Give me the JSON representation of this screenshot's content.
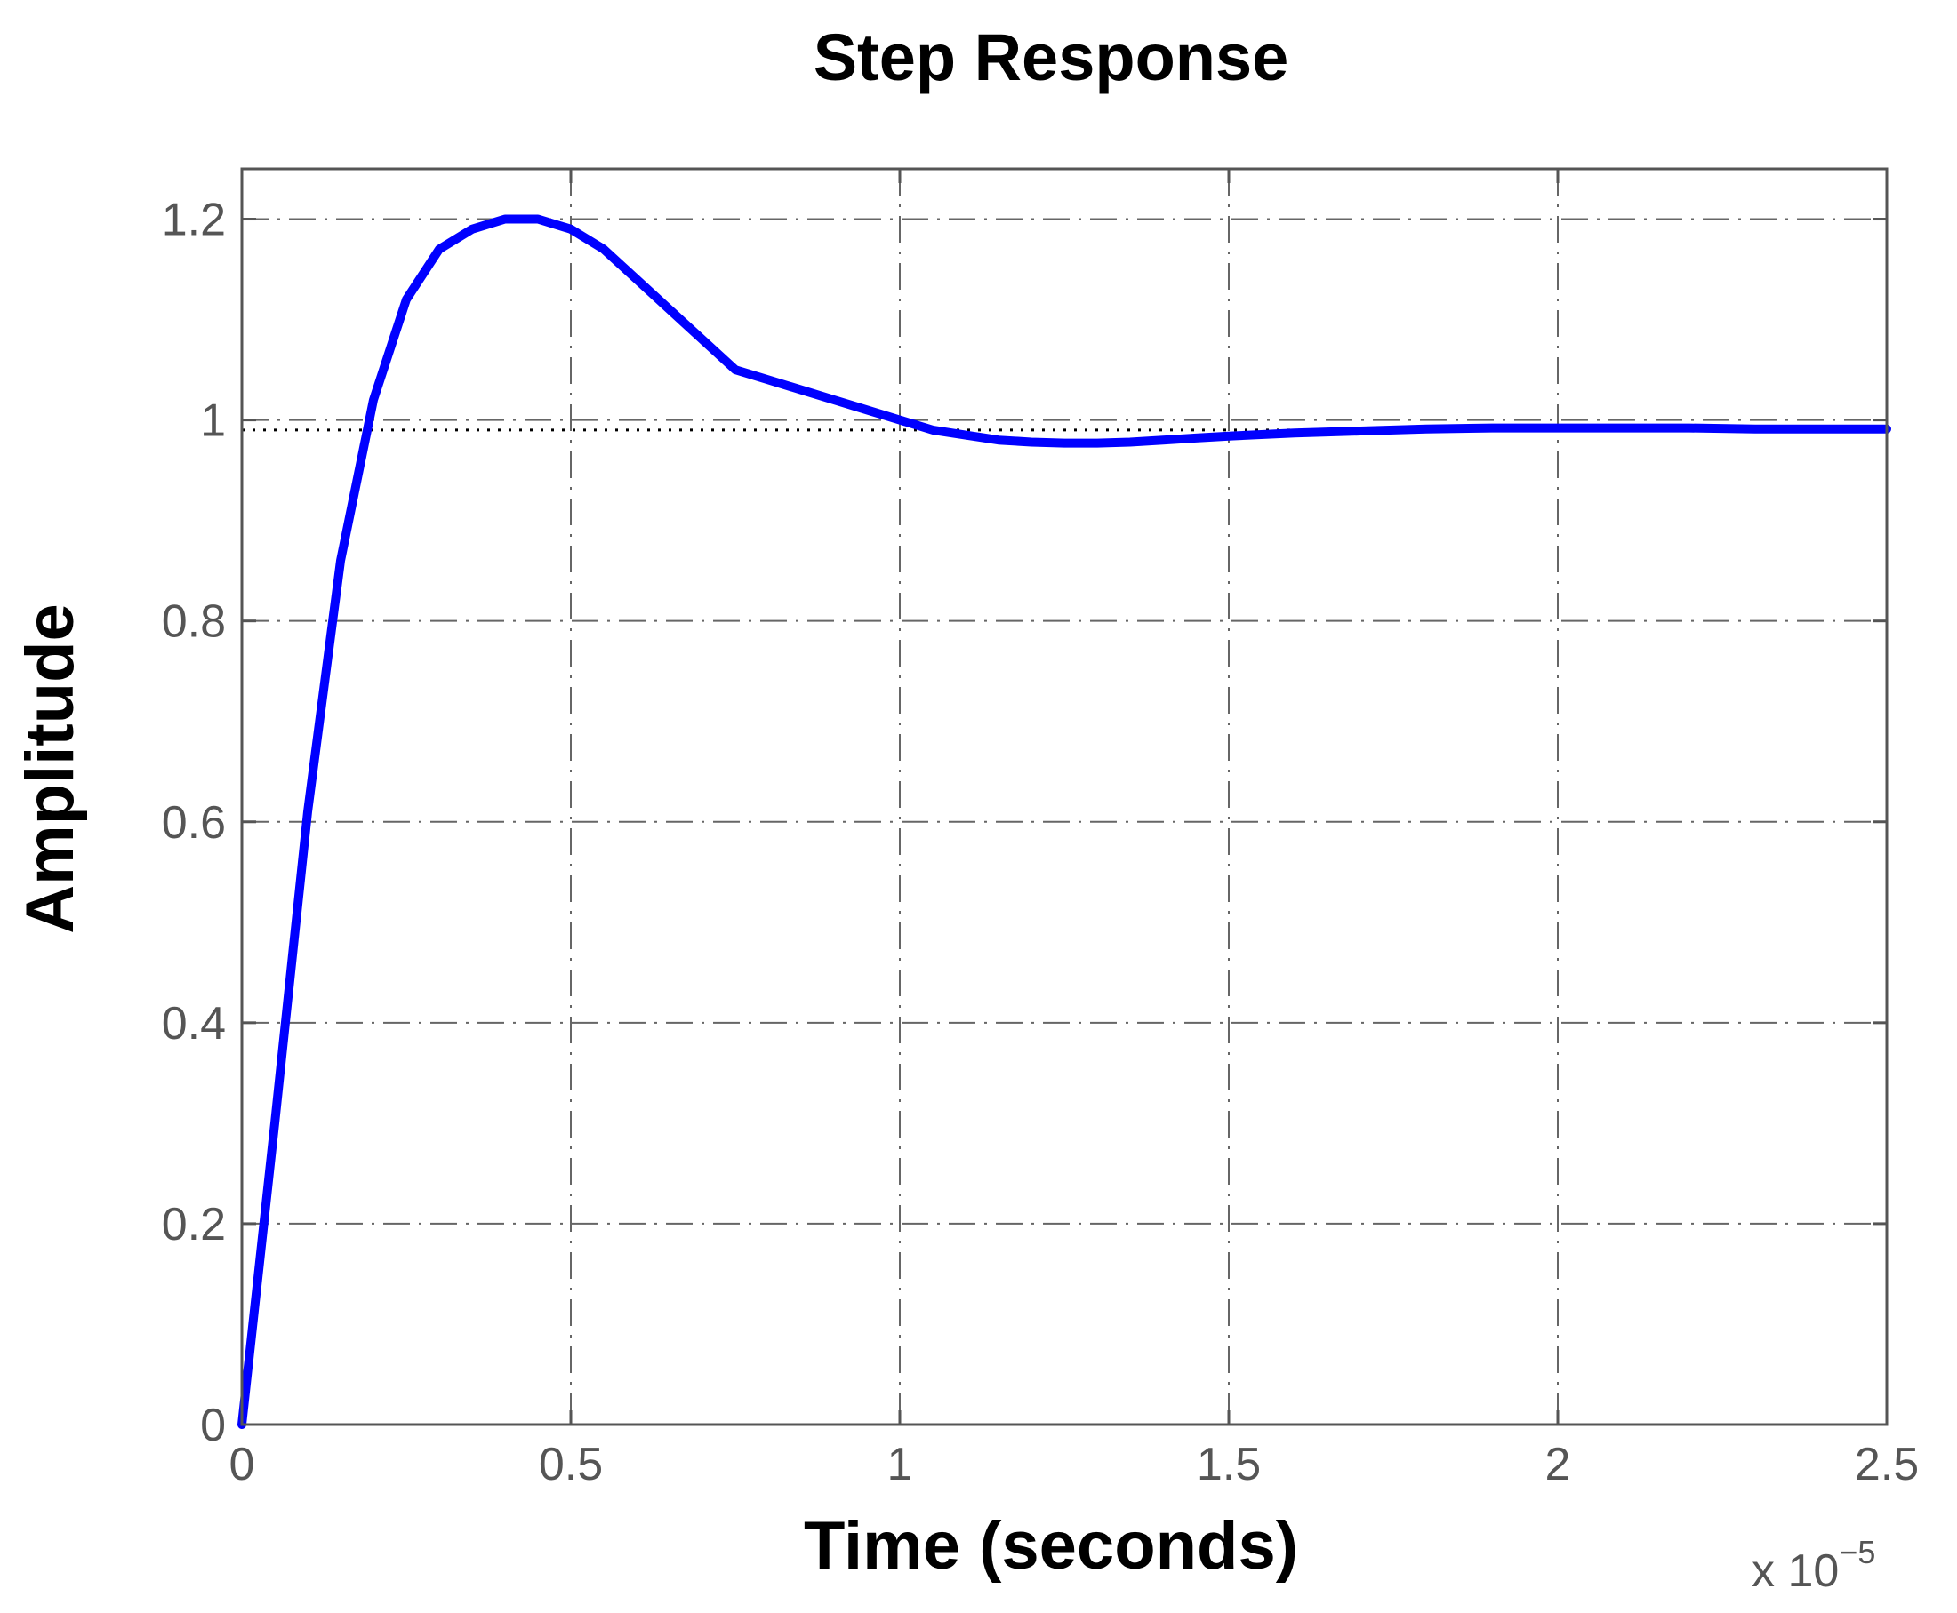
{
  "chart_data": {
    "type": "line",
    "title": "Step Response",
    "xlabel": "Time (seconds)",
    "ylabel": "Amplitude",
    "x_multiplier_base": "x 10",
    "x_multiplier_exponent": "−5",
    "xlim": [
      0,
      2.5
    ],
    "ylim": [
      0,
      1.25
    ],
    "x_ticks": [
      0,
      0.5,
      1,
      1.5,
      2,
      2.5
    ],
    "x_tick_labels": [
      "0",
      "0.5",
      "1",
      "1.5",
      "2",
      "2.5"
    ],
    "y_ticks": [
      0,
      0.2,
      0.4,
      0.6,
      0.8,
      1,
      1.2
    ],
    "y_tick_labels": [
      "0",
      "0.2",
      "0.4",
      "0.6",
      "0.8",
      "1",
      "1.2"
    ],
    "grid": true,
    "grid_style": "dash-dot",
    "steady_state_value": 0.99,
    "series": [
      {
        "color": "#0000ff",
        "x": [
          0,
          0.05,
          0.1,
          0.15,
          0.2,
          0.25,
          0.3,
          0.35,
          0.4,
          0.45,
          0.5,
          0.55,
          0.6,
          0.65,
          0.7,
          0.75,
          0.8,
          0.85,
          0.9,
          0.95,
          1.0,
          1.05,
          1.1,
          1.15,
          1.2,
          1.25,
          1.3,
          1.35,
          1.4,
          1.45,
          1.5,
          1.6,
          1.7,
          1.8,
          1.9,
          2.0,
          2.1,
          2.2,
          2.3,
          2.4,
          2.5
        ],
        "y": [
          0,
          0.3,
          0.61,
          0.86,
          1.02,
          1.12,
          1.17,
          1.19,
          1.2,
          1.2,
          1.19,
          1.17,
          1.14,
          1.11,
          1.08,
          1.05,
          1.04,
          1.03,
          1.02,
          1.01,
          1.0,
          0.99,
          0.985,
          0.98,
          0.978,
          0.977,
          0.977,
          0.978,
          0.98,
          0.982,
          0.984,
          0.987,
          0.989,
          0.991,
          0.992,
          0.992,
          0.992,
          0.992,
          0.991,
          0.991,
          0.991
        ]
      }
    ]
  }
}
